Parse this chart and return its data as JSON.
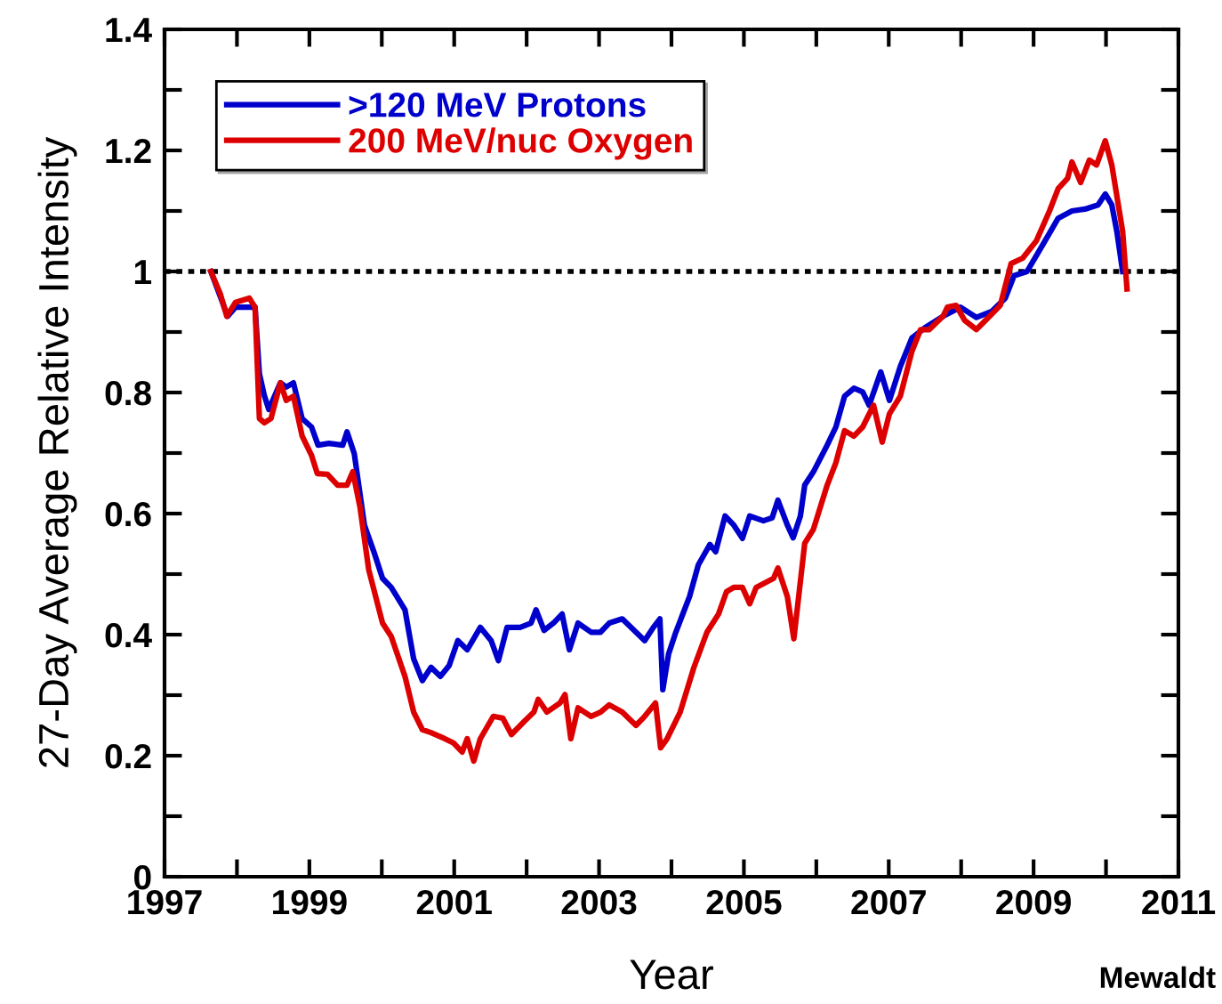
{
  "chart_data": {
    "type": "line",
    "xlabel": "Year",
    "ylabel": "27-Day Average Relative Intensity",
    "annotations": [
      "Mewaldt"
    ],
    "xlim": [
      1997,
      2011
    ],
    "ylim": [
      0,
      1.4
    ],
    "xticks": [
      1997,
      1999,
      2001,
      2003,
      2005,
      2007,
      2009,
      2011
    ],
    "yticks": [
      0,
      0.2,
      0.4,
      0.6,
      0.8,
      1,
      1.2,
      1.4
    ],
    "grid": false,
    "legend": "top left",
    "marker": "none",
    "line_style": "solid",
    "ref_lines": [
      {
        "axis": "y",
        "value": 1,
        "label": null,
        "color": "#000000",
        "line_style": "dotted"
      }
    ],
    "series": [
      {
        "name": ">120 MeV Protons",
        "color": "#0000cc",
        "x": [
          1997.64,
          1997.8,
          1997.87,
          1997.98,
          1998.17,
          1998.25,
          1998.31,
          1998.38,
          1998.44,
          1998.6,
          1998.68,
          1998.78,
          1998.9,
          1999.03,
          1999.12,
          1999.27,
          1999.46,
          1999.52,
          1999.62,
          1999.76,
          1999.89,
          2000.01,
          2000.13,
          2000.32,
          2000.44,
          2000.56,
          2000.68,
          2000.81,
          2000.93,
          2001.05,
          2001.18,
          2001.36,
          2001.51,
          2001.61,
          2001.73,
          2001.91,
          2002.06,
          2002.13,
          2002.24,
          2002.37,
          2002.49,
          2002.59,
          2002.71,
          2002.89,
          2003.02,
          2003.14,
          2003.32,
          2003.51,
          2003.63,
          2003.75,
          2003.84,
          2003.88,
          2003.96,
          2004.06,
          2004.25,
          2004.37,
          2004.53,
          2004.61,
          2004.74,
          2004.86,
          2004.98,
          2005.08,
          2005.27,
          2005.39,
          2005.47,
          2005.6,
          2005.68,
          2005.78,
          2005.84,
          2005.96,
          2006.15,
          2006.27,
          2006.39,
          2006.52,
          2006.64,
          2006.73,
          2006.89,
          2007.01,
          2007.16,
          2007.32,
          2007.5,
          2007.75,
          2007.99,
          2008.21,
          2008.42,
          2008.61,
          2008.73,
          2008.91,
          2009.16,
          2009.34,
          2009.53,
          2009.71,
          2009.89,
          2009.99,
          2010.08,
          2010.15,
          2010.23
        ],
        "values": [
          1.0,
          0.949,
          0.926,
          0.941,
          0.941,
          0.941,
          0.831,
          0.794,
          0.772,
          0.816,
          0.809,
          0.816,
          0.757,
          0.743,
          0.713,
          0.716,
          0.713,
          0.735,
          0.699,
          0.581,
          0.537,
          0.493,
          0.478,
          0.441,
          0.36,
          0.324,
          0.346,
          0.331,
          0.349,
          0.39,
          0.375,
          0.412,
          0.39,
          0.357,
          0.412,
          0.412,
          0.419,
          0.441,
          0.407,
          0.419,
          0.434,
          0.375,
          0.419,
          0.404,
          0.404,
          0.419,
          0.426,
          0.404,
          0.39,
          0.412,
          0.426,
          0.309,
          0.368,
          0.404,
          0.463,
          0.515,
          0.549,
          0.537,
          0.596,
          0.581,
          0.559,
          0.596,
          0.588,
          0.593,
          0.622,
          0.581,
          0.56,
          0.596,
          0.647,
          0.669,
          0.713,
          0.743,
          0.794,
          0.807,
          0.801,
          0.779,
          0.834,
          0.787,
          0.843,
          0.89,
          0.907,
          0.926,
          0.941,
          0.924,
          0.934,
          0.956,
          0.993,
          1.0,
          1.051,
          1.088,
          1.1,
          1.103,
          1.11,
          1.128,
          1.11,
          1.066,
          1.0
        ]
      },
      {
        "name": "200 MeV/nuc Oxygen",
        "color": "#dd0000",
        "x": [
          1997.64,
          1997.77,
          1997.86,
          1997.98,
          1998.17,
          1998.25,
          1998.31,
          1998.38,
          1998.47,
          1998.6,
          1998.68,
          1998.78,
          1998.9,
          1999.03,
          1999.11,
          1999.25,
          1999.39,
          1999.52,
          1999.6,
          1999.7,
          1999.82,
          2000.01,
          2000.13,
          2000.32,
          2000.44,
          2000.56,
          2000.68,
          2000.87,
          2000.99,
          2001.11,
          2001.18,
          2001.27,
          2001.36,
          2001.54,
          2001.67,
          2001.79,
          2001.97,
          2002.1,
          2002.16,
          2002.28,
          2002.46,
          2002.53,
          2002.61,
          2002.71,
          2002.89,
          2003.02,
          2003.14,
          2003.32,
          2003.51,
          2003.63,
          2003.78,
          2003.85,
          2003.94,
          2004.12,
          2004.31,
          2004.49,
          2004.65,
          2004.76,
          2004.86,
          2004.98,
          2005.08,
          2005.17,
          2005.41,
          2005.47,
          2005.6,
          2005.69,
          2005.84,
          2005.96,
          2006.15,
          2006.27,
          2006.39,
          2006.52,
          2006.64,
          2006.79,
          2006.91,
          2007.01,
          2007.16,
          2007.32,
          2007.44,
          2007.56,
          2007.75,
          2007.81,
          2007.93,
          2008.05,
          2008.21,
          2008.36,
          2008.54,
          2008.69,
          2008.85,
          2009.04,
          2009.22,
          2009.34,
          2009.47,
          2009.53,
          2009.65,
          2009.77,
          2009.87,
          2009.99,
          2010.08,
          2010.23,
          2010.29
        ],
        "values": [
          1.0,
          0.963,
          0.926,
          0.949,
          0.956,
          0.941,
          0.757,
          0.75,
          0.757,
          0.816,
          0.787,
          0.794,
          0.728,
          0.696,
          0.666,
          0.665,
          0.647,
          0.647,
          0.669,
          0.61,
          0.507,
          0.419,
          0.397,
          0.331,
          0.272,
          0.243,
          0.238,
          0.228,
          0.221,
          0.206,
          0.228,
          0.191,
          0.228,
          0.265,
          0.262,
          0.235,
          0.257,
          0.272,
          0.293,
          0.272,
          0.287,
          0.301,
          0.228,
          0.279,
          0.265,
          0.272,
          0.284,
          0.272,
          0.25,
          0.265,
          0.287,
          0.213,
          0.228,
          0.272,
          0.346,
          0.404,
          0.434,
          0.471,
          0.478,
          0.478,
          0.451,
          0.478,
          0.493,
          0.51,
          0.463,
          0.393,
          0.551,
          0.574,
          0.647,
          0.684,
          0.737,
          0.728,
          0.743,
          0.779,
          0.718,
          0.765,
          0.794,
          0.868,
          0.904,
          0.904,
          0.926,
          0.941,
          0.944,
          0.919,
          0.904,
          0.922,
          0.944,
          1.013,
          1.022,
          1.051,
          1.1,
          1.137,
          1.154,
          1.181,
          1.147,
          1.184,
          1.176,
          1.216,
          1.176,
          1.066,
          0.971
        ]
      }
    ]
  }
}
